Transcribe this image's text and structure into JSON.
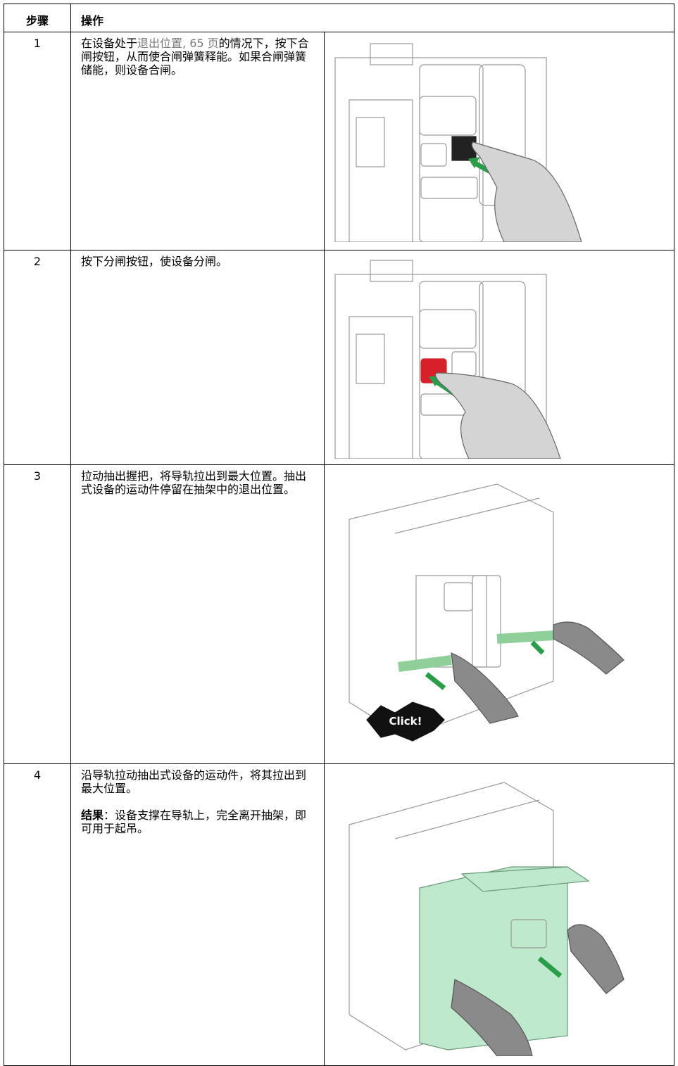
{
  "header": {
    "step": "步骤",
    "action": "操作"
  },
  "rows": [
    {
      "step": "1",
      "text": [
        "在设备处于",
        "退出位置, 65 页",
        "的情况下，按下合闸按钮，从而使合闸弹簧释能。如果合闸弹簧储能，则设备合闸。"
      ]
    },
    {
      "step": "2",
      "text": [
        "按下分闸按钮，使设备分闸。"
      ]
    },
    {
      "step": "3",
      "text": [
        "拉动抽出握把，将导轨拉出到最大位置。抽出式设备的运动件停留在抽架中的退出位置。"
      ],
      "image_label": "Click!"
    },
    {
      "step": "4",
      "text": [
        "沿导轨拉动抽出式设备的运动件，将其拉出到最大位置。"
      ],
      "result_label": "结果",
      "result_text": "：设备支撑在导轨上，完全离开抽架，即可用于起吊。"
    }
  ]
}
